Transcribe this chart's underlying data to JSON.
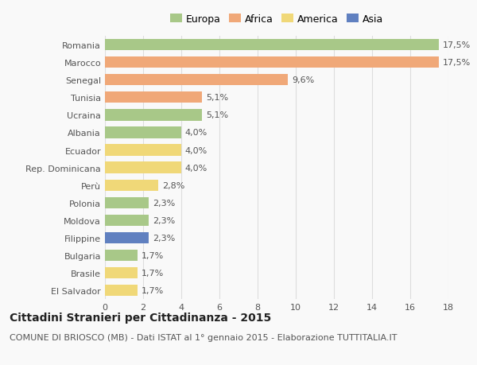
{
  "countries": [
    "Romania",
    "Marocco",
    "Senegal",
    "Tunisia",
    "Ucraina",
    "Albania",
    "Ecuador",
    "Rep. Dominicana",
    "Perù",
    "Polonia",
    "Moldova",
    "Filippine",
    "Bulgaria",
    "Brasile",
    "El Salvador"
  ],
  "values": [
    17.5,
    17.5,
    9.6,
    5.1,
    5.1,
    4.0,
    4.0,
    4.0,
    2.8,
    2.3,
    2.3,
    2.3,
    1.7,
    1.7,
    1.7
  ],
  "labels": [
    "17,5%",
    "17,5%",
    "9,6%",
    "5,1%",
    "5,1%",
    "4,0%",
    "4,0%",
    "4,0%",
    "2,8%",
    "2,3%",
    "2,3%",
    "2,3%",
    "1,7%",
    "1,7%",
    "1,7%"
  ],
  "colors": [
    "#a8c888",
    "#f0a878",
    "#f0a878",
    "#f0a878",
    "#a8c888",
    "#a8c888",
    "#f0d878",
    "#f0d878",
    "#f0d878",
    "#a8c888",
    "#a8c888",
    "#6080c0",
    "#a8c888",
    "#f0d878",
    "#f0d878"
  ],
  "legend_labels": [
    "Europa",
    "Africa",
    "America",
    "Asia"
  ],
  "legend_colors": [
    "#a8c888",
    "#f0a878",
    "#f0d878",
    "#6080c0"
  ],
  "xlim": [
    0,
    18
  ],
  "xticks": [
    0,
    2,
    4,
    6,
    8,
    10,
    12,
    14,
    16,
    18
  ],
  "title": "Cittadini Stranieri per Cittadinanza - 2015",
  "subtitle": "COMUNE DI BRIOSCO (MB) - Dati ISTAT al 1° gennaio 2015 - Elaborazione TUTTITALIA.IT",
  "background_color": "#f9f9f9",
  "bar_height": 0.65,
  "title_fontsize": 10,
  "subtitle_fontsize": 8,
  "label_fontsize": 8,
  "tick_fontsize": 8
}
